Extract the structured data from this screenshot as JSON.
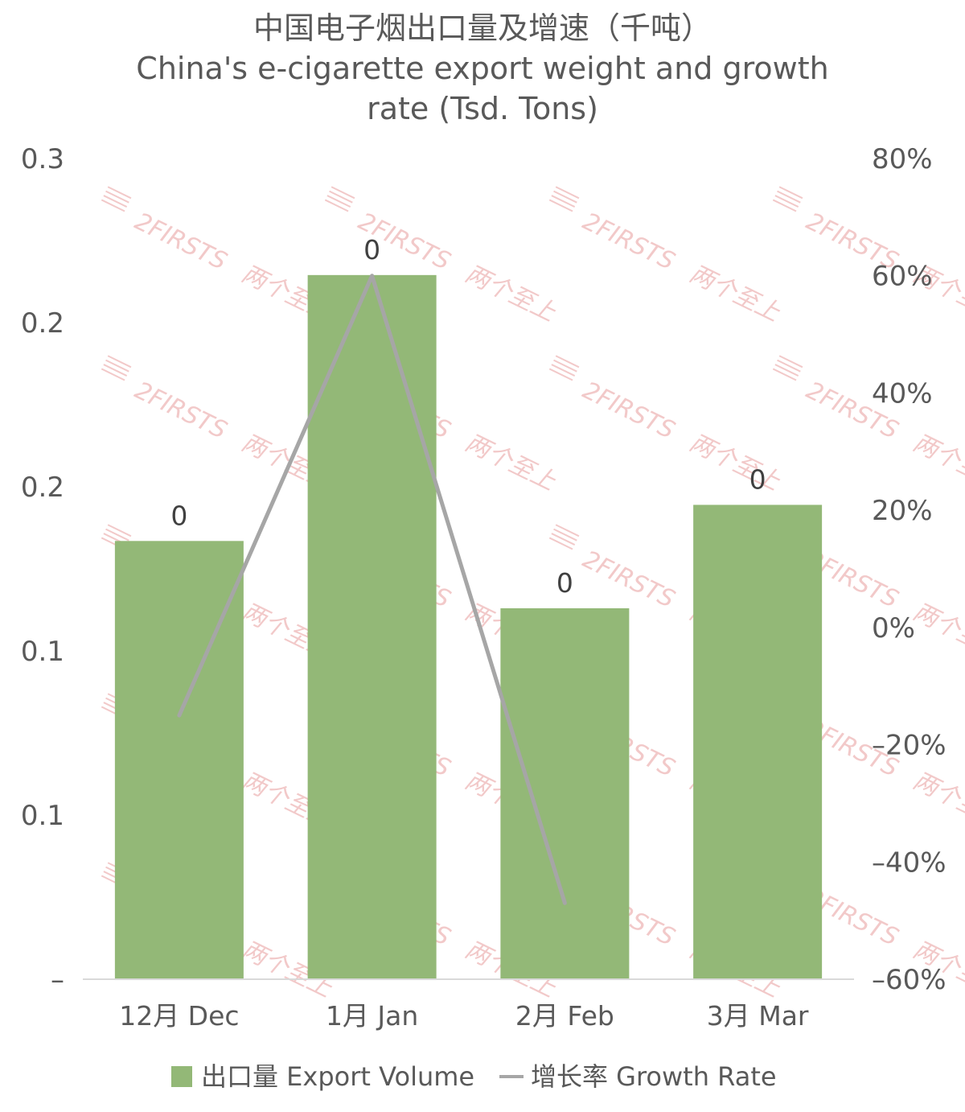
{
  "chart_data": {
    "type": "bar",
    "title_lines": [
      "中国电子烟出口量及增速（千吨）",
      "China's e-cigarette export weight and growth",
      "rate (Tsd. Tons)"
    ],
    "categories": [
      "12月 Dec",
      "1月 Jan",
      "2月 Feb",
      "3月 Mar"
    ],
    "series": [
      {
        "name": "出口量 Export Volume",
        "type": "bar",
        "axis": "left",
        "color": "#93b877",
        "values": [
          0.1335,
          0.2145,
          0.113,
          0.1445
        ],
        "data_labels": [
          "0",
          "0",
          "0",
          "0"
        ]
      },
      {
        "name": "增长率 Growth Rate",
        "type": "line",
        "axis": "right",
        "color": "#a6a6a6",
        "values": [
          -15,
          60,
          -47,
          null
        ]
      }
    ],
    "y_left": {
      "ylim": [
        0,
        0.25
      ],
      "tick_values": [
        0,
        0.05,
        0.1,
        0.15,
        0.2,
        0.25
      ],
      "tick_labels": [
        "–",
        "0.1",
        "0.1",
        "0.2",
        "0.2",
        "0.3"
      ]
    },
    "y_right": {
      "ylim": [
        -60,
        80
      ],
      "tick_values": [
        -60,
        -40,
        -20,
        0,
        20,
        40,
        60,
        80
      ],
      "tick_labels": [
        "–60%",
        "–40%",
        "–20%",
        "0%",
        "20%",
        "40%",
        "60%",
        "80%"
      ]
    },
    "legend": {
      "position": "bottom",
      "items": [
        "出口量 Export Volume",
        "增长率 Growth Rate"
      ]
    },
    "grid": false
  },
  "watermark": {
    "text_latin": "2FIRSTS",
    "text_cn": "两个至上"
  }
}
